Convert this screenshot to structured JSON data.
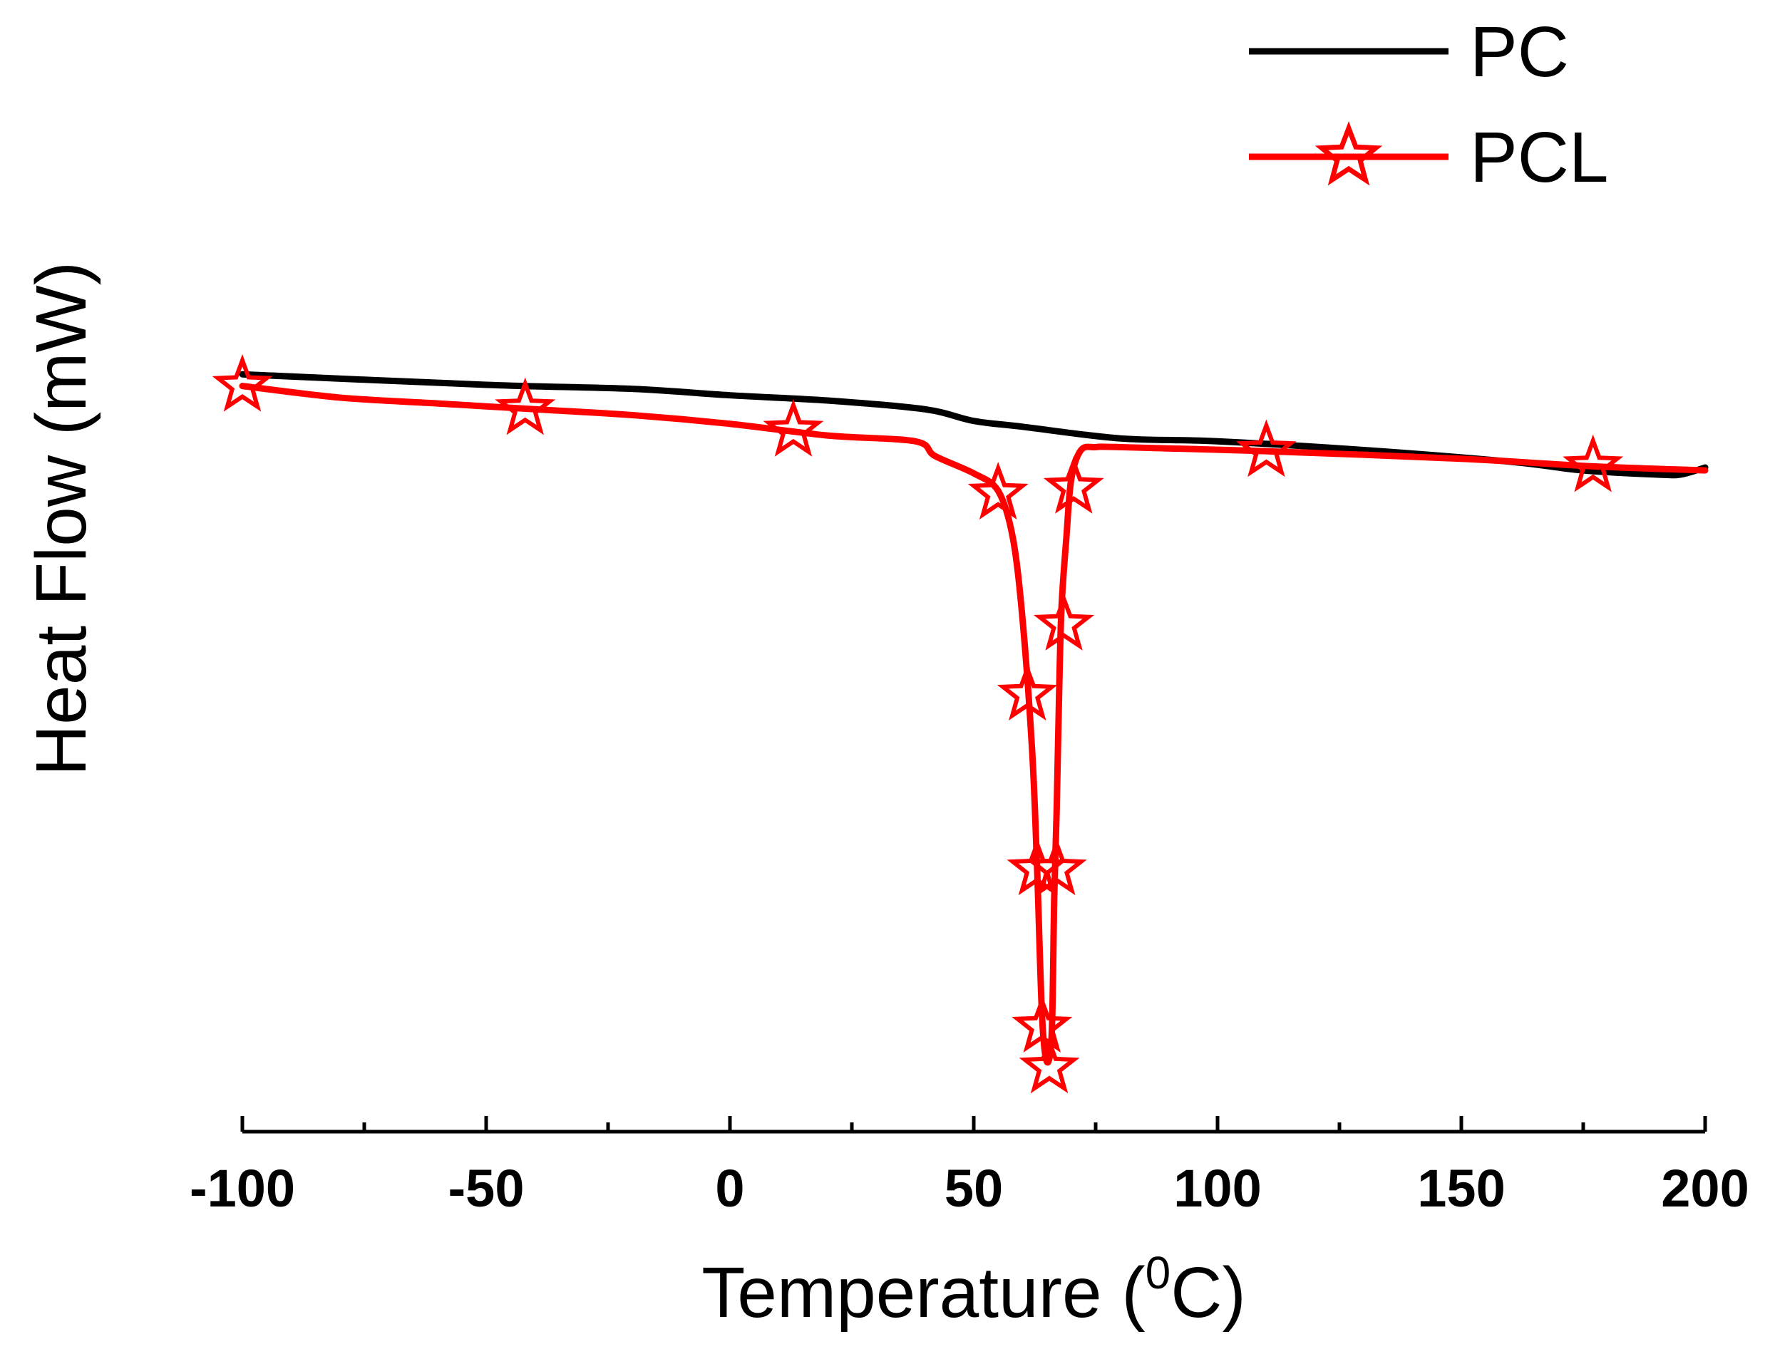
{
  "chart_data": {
    "type": "line",
    "title": "",
    "xlabel": "Temperature (",
    "xlabel_sup": "0",
    "xlabel_unit": "C)",
    "ylabel": "Heat Flow (mW)",
    "xlim": [
      -100,
      200
    ],
    "ylim": [
      -13,
      3
    ],
    "xticks": [
      -100,
      -50,
      0,
      50,
      100,
      150,
      200
    ],
    "xtick_labels": [
      "-100",
      "-50",
      "0",
      "50",
      "100",
      "150",
      "200"
    ],
    "grid": false,
    "legend_position": "top-right",
    "series": [
      {
        "name": "PC",
        "color": "#000000",
        "marker": "none",
        "x": [
          -100,
          -50,
          -20,
          0,
          20,
          40,
          50,
          60,
          80,
          100,
          130,
          160,
          175,
          190,
          195,
          200
        ],
        "y": [
          0.0,
          -0.18,
          -0.25,
          -0.36,
          -0.45,
          -0.6,
          -0.8,
          -0.9,
          -1.1,
          -1.15,
          -1.3,
          -1.5,
          -1.65,
          -1.72,
          -1.72,
          -1.6
        ]
      },
      {
        "name": "PCL",
        "color": "#ff0000",
        "marker": "star",
        "x": [
          -100,
          -80,
          -60,
          -40,
          -20,
          0,
          20,
          38,
          42,
          50,
          55,
          58,
          60,
          62,
          63,
          64,
          65,
          66,
          66.5,
          67,
          67.5,
          68,
          69,
          70,
          72,
          75,
          80,
          110,
          150,
          177,
          200
        ],
        "y": [
          -0.2,
          -0.4,
          -0.5,
          -0.6,
          -0.7,
          -0.85,
          -1.05,
          -1.15,
          -1.4,
          -1.7,
          -2.0,
          -2.8,
          -4.2,
          -6.5,
          -8.5,
          -11.0,
          -11.8,
          -11.3,
          -9.0,
          -7.5,
          -5.5,
          -4.0,
          -2.8,
          -1.8,
          -1.3,
          -1.25,
          -1.25,
          -1.32,
          -1.45,
          -1.58,
          -1.65
        ]
      }
    ],
    "markers": {
      "PCL": [
        [
          -100,
          -0.2
        ],
        [
          -42,
          -0.6
        ],
        [
          13,
          -0.97
        ],
        [
          55,
          -2.05
        ],
        [
          61,
          -5.5
        ],
        [
          63,
          -8.5
        ],
        [
          64,
          -11.2
        ],
        [
          65.5,
          -11.9
        ],
        [
          67,
          -8.5
        ],
        [
          68.5,
          -4.3
        ],
        [
          70.5,
          -1.95
        ],
        [
          110,
          -1.32
        ],
        [
          177,
          -1.58
        ]
      ]
    }
  }
}
